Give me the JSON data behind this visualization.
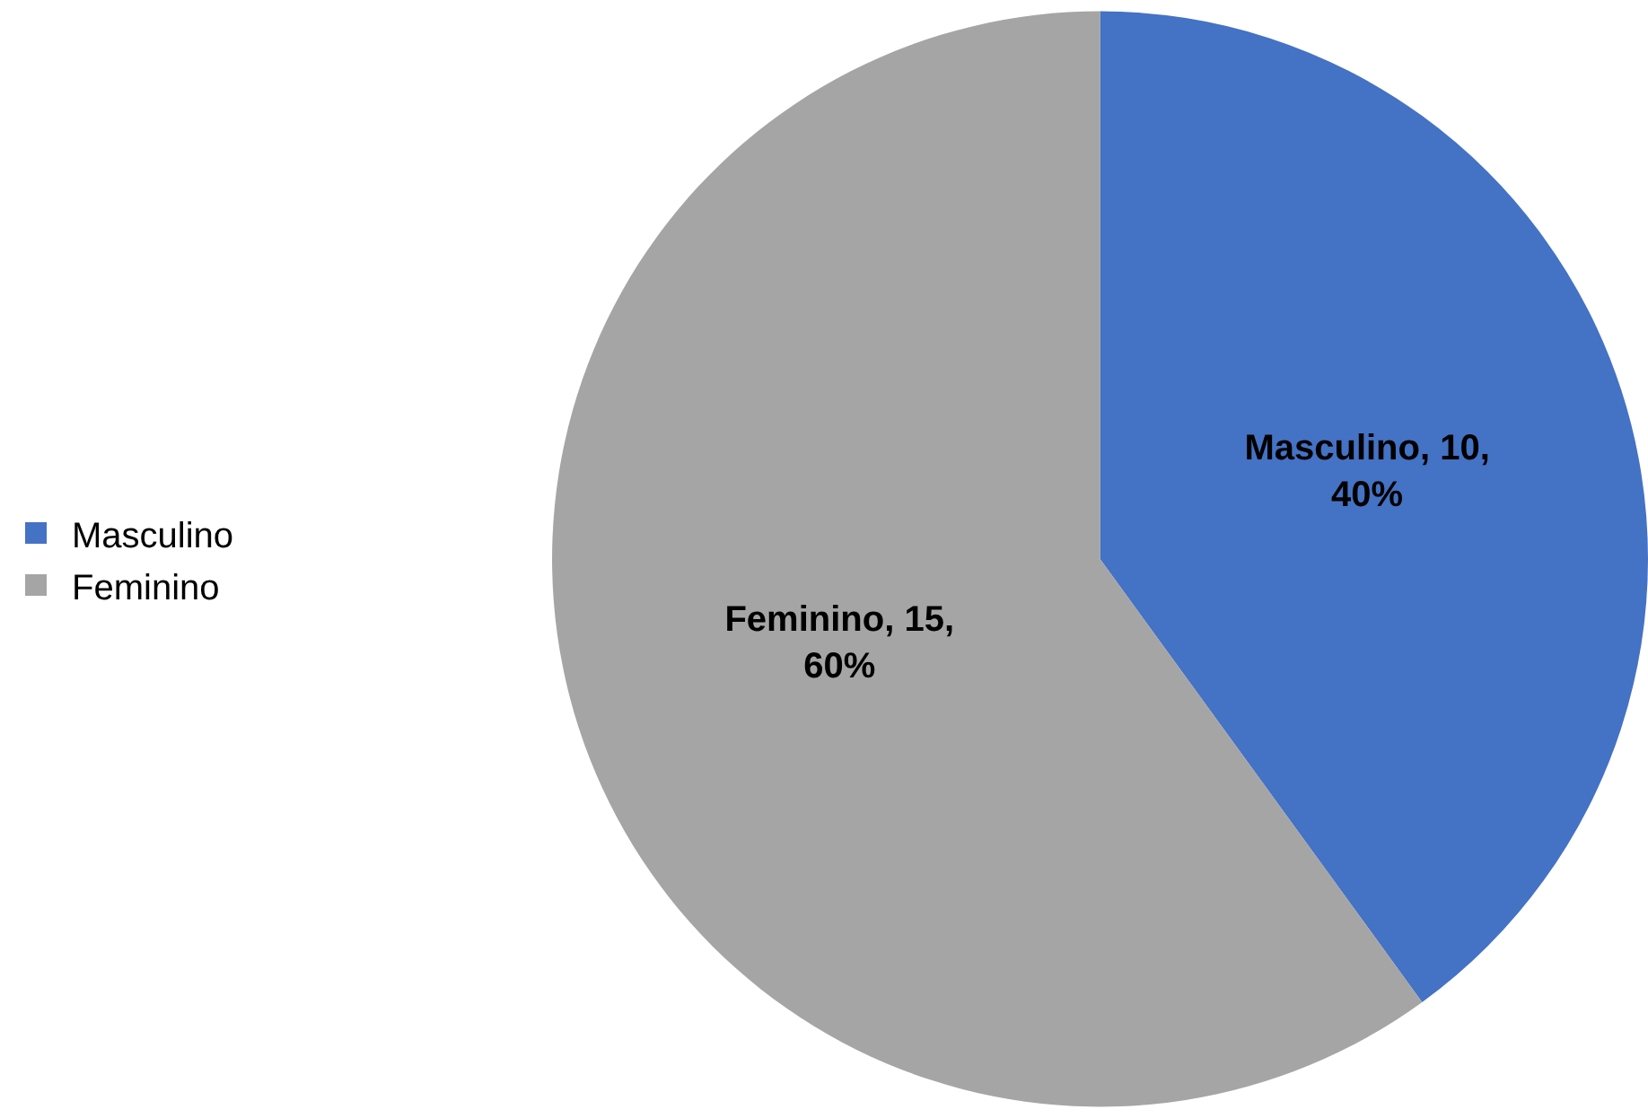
{
  "chart_data": {
    "type": "pie",
    "categories": [
      "Masculino",
      "Feminino"
    ],
    "values": [
      10,
      15
    ],
    "colors": [
      "#4472c4",
      "#a5a5a5"
    ],
    "value_labels": [
      "Masculino, 10, 40%",
      "Feminino, 15, 60%"
    ],
    "legend": "left"
  }
}
